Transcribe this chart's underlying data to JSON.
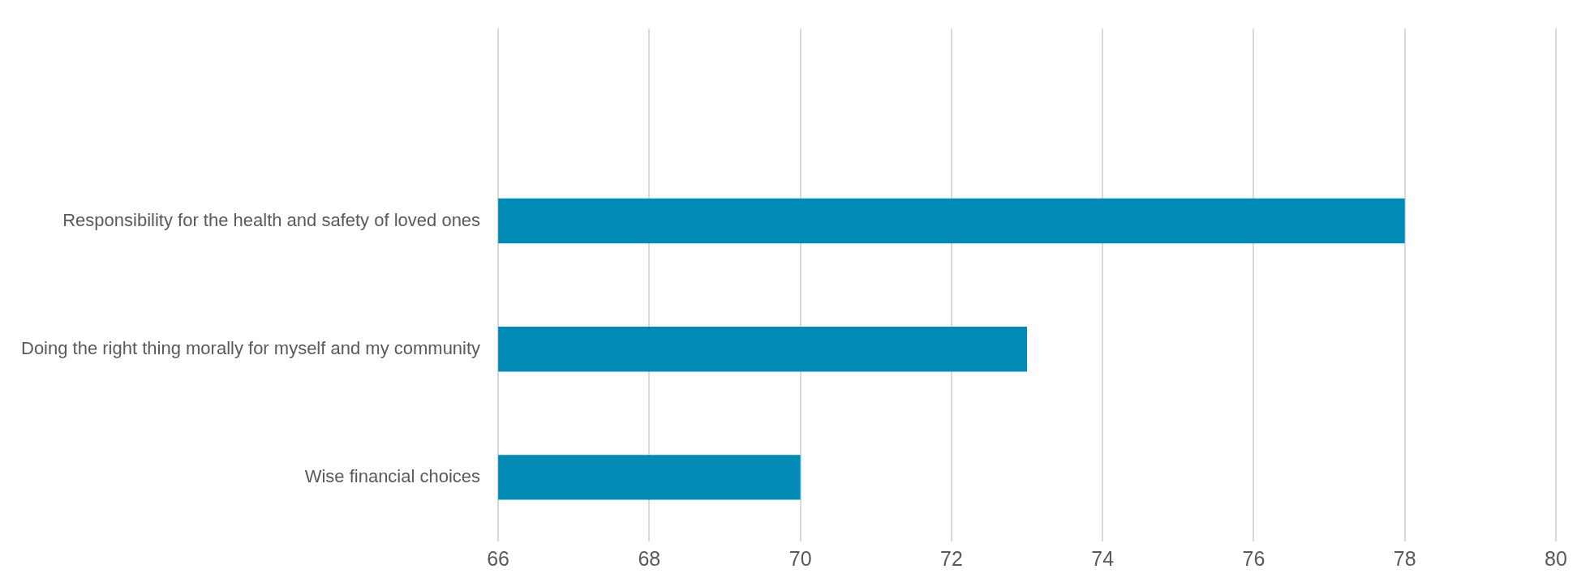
{
  "chart_data": {
    "type": "bar",
    "orientation": "horizontal",
    "categories": [
      null,
      "Responsibility for the health and safety of loved ones",
      "Doing the right thing morally for myself and my community",
      "Wise financial choices"
    ],
    "values": [
      null,
      78,
      73,
      70
    ],
    "color": "#008ab4",
    "xlim": [
      66,
      80
    ],
    "xticks": [
      66,
      68,
      70,
      72,
      74,
      76,
      78,
      80
    ],
    "grid": "x"
  }
}
